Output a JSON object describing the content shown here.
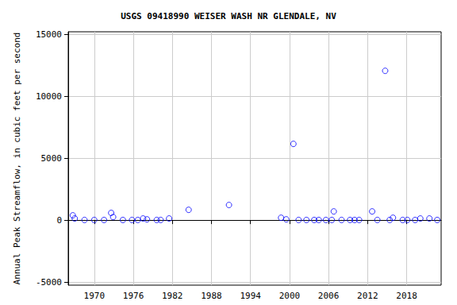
{
  "chart_data": {
    "type": "scatter",
    "title": "USGS 09418990 WEISER WASH NR GLENDALE, NV",
    "y_label": "Annual Peak Streamflow, in cubic feet per second",
    "x": [
      1966.7,
      1967.0,
      1968.5,
      1970.0,
      1971.5,
      1972.6,
      1972.9,
      1974.4,
      1975.8,
      1976.7,
      1977.5,
      1978.1,
      1979.6,
      1980.2,
      1981.5,
      1984.5,
      1990.7,
      1998.7,
      1999.5,
      2000.6,
      2001.4,
      2002.6,
      2003.8,
      2004.5,
      2005.6,
      2006.5,
      2006.8,
      2008.0,
      2009.3,
      2010.0,
      2010.7,
      2012.7,
      2013.5,
      2014.7,
      2015.4,
      2015.9,
      2017.4,
      2018.1,
      2019.3,
      2020.1,
      2021.5,
      2022.7
    ],
    "values": [
      385,
      130,
      10,
      10,
      10,
      580,
      250,
      10,
      10,
      10,
      130,
      60,
      10,
      10,
      130,
      830,
      1220,
      190,
      60,
      6150,
      10,
      10,
      10,
      10,
      10,
      10,
      700,
      10,
      10,
      10,
      10,
      700,
      10,
      12050,
      10,
      190,
      10,
      10,
      10,
      130,
      130,
      10
    ],
    "color": "#0000ff",
    "marker": "open_circle",
    "xlim": [
      1966,
      2023.3
    ],
    "xticks": [
      1970,
      1976,
      1982,
      1988,
      1994,
      2000,
      2006,
      2012,
      2018
    ],
    "ylim": [
      -5250,
      15200
    ],
    "yticks": [
      -5000,
      0,
      5000,
      10000,
      15000
    ],
    "grid": true
  }
}
